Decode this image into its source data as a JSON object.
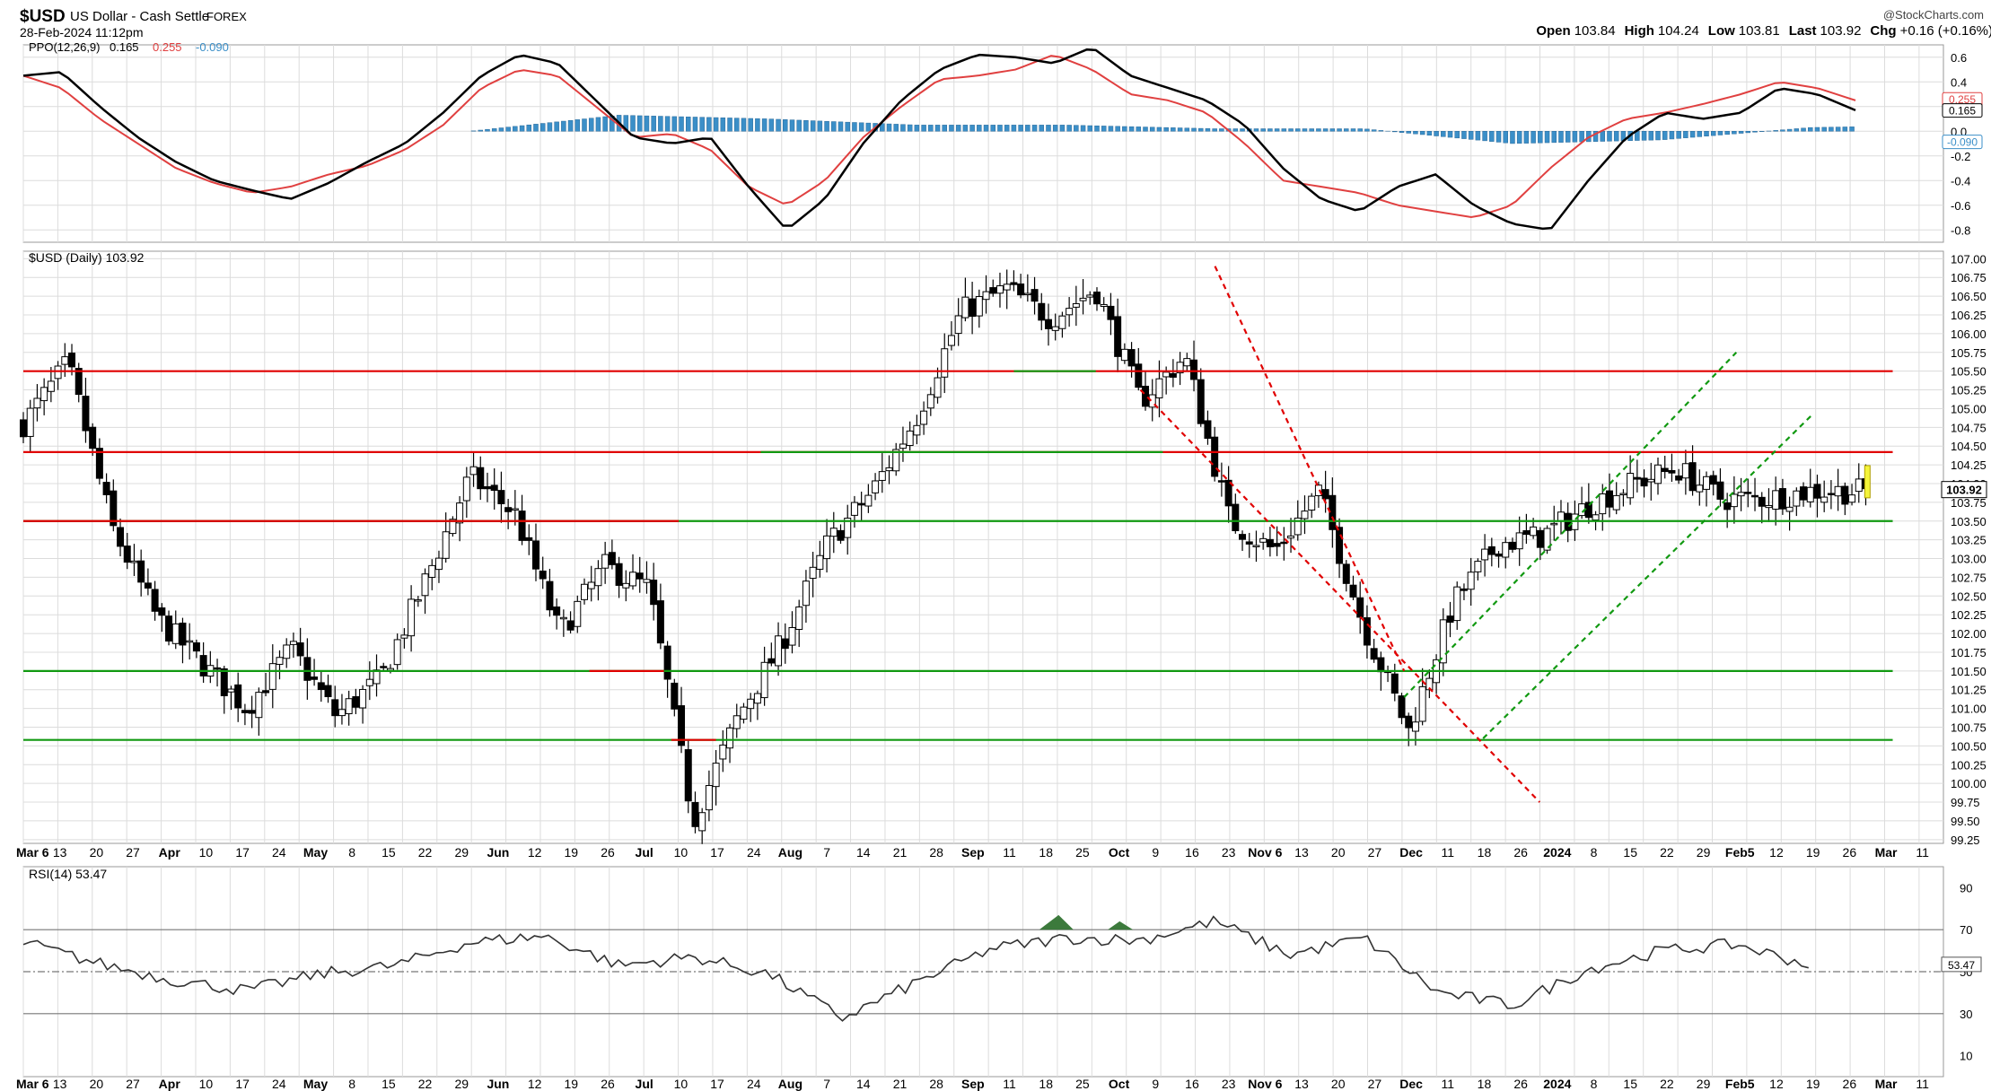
{
  "header": {
    "symbol": "$USD",
    "name": "US Dollar - Cash Settle",
    "exchange": "FOREX",
    "date": "28-Feb-2024 11:12pm",
    "watermark": "@StockCharts.com",
    "ohlc": [
      {
        "label": "Open",
        "value": "103.84"
      },
      {
        "label": "High",
        "value": "104.24"
      },
      {
        "label": "Low",
        "value": "103.81"
      },
      {
        "label": "Last",
        "value": "103.92"
      },
      {
        "label": "Chg",
        "value": "+0.16 (+0.16%)"
      }
    ]
  },
  "colors": {
    "up": "#ffffff",
    "down": "#000000",
    "resistance": "#e00000",
    "support": "#119911",
    "ppo_line": "#000000",
    "signal_line": "#e04040",
    "histogram": "#3b8fc8",
    "rsi_line": "#333333",
    "overbought_fill": "#3c7a3c",
    "last_marker": "#f4f43a"
  },
  "chart_data": [
    {
      "type": "line",
      "panel": "PPO",
      "legend": {
        "name": "PPO(12,26,9)",
        "ppo": "0.165",
        "signal": "0.255",
        "hist": "-0.090"
      },
      "ylim": [
        -0.9,
        0.7
      ],
      "yticks": [
        "0.6",
        "0.4",
        "0.2",
        "0.0",
        "-0.2",
        "-0.4",
        "-0.6",
        "-0.8"
      ],
      "right_badges": [
        "0.255",
        "0.165",
        "-0.090"
      ],
      "x_months": [
        3,
        4,
        5,
        6,
        7,
        8,
        9,
        10,
        11,
        12,
        13
      ],
      "ppo": [
        0.45,
        0.48,
        0.2,
        -0.05,
        -0.25,
        -0.4,
        -0.48,
        -0.55,
        -0.42,
        -0.25,
        -0.1,
        0.15,
        0.45,
        0.62,
        0.55,
        0.25,
        -0.05,
        -0.1,
        -0.05,
        -0.45,
        -0.8,
        -0.55,
        -0.1,
        0.25,
        0.5,
        0.62,
        0.6,
        0.55,
        0.68,
        0.45,
        0.35,
        0.25,
        0.05,
        -0.3,
        -0.55,
        -0.65,
        -0.45,
        -0.35,
        -0.6,
        -0.75,
        -0.8,
        -0.4,
        -0.05,
        0.15,
        0.1,
        0.15,
        0.35,
        0.3,
        0.17
      ],
      "signal": [
        0.45,
        0.35,
        0.1,
        -0.1,
        -0.3,
        -0.42,
        -0.5,
        -0.45,
        -0.35,
        -0.28,
        -0.15,
        0.05,
        0.35,
        0.5,
        0.45,
        0.2,
        -0.05,
        -0.02,
        -0.15,
        -0.45,
        -0.6,
        -0.4,
        -0.05,
        0.2,
        0.42,
        0.45,
        0.5,
        0.62,
        0.5,
        0.3,
        0.25,
        0.15,
        -0.1,
        -0.4,
        -0.45,
        -0.5,
        -0.6,
        -0.65,
        -0.7,
        -0.6,
        -0.3,
        -0.05,
        0.1,
        0.15,
        0.22,
        0.3,
        0.4,
        0.35,
        0.25
      ]
    },
    {
      "type": "candlestick",
      "panel": "Price",
      "title": "$USD (Daily) 103.92",
      "last": "103.92",
      "ylim": [
        99.2,
        107.1
      ],
      "yticks": [
        "107.00",
        "106.75",
        "106.50",
        "106.25",
        "106.00",
        "105.75",
        "105.50",
        "105.25",
        "105.00",
        "104.75",
        "104.50",
        "104.25",
        "104.00",
        "103.75",
        "103.50",
        "103.25",
        "103.00",
        "102.75",
        "102.50",
        "102.25",
        "102.00",
        "101.75",
        "101.50",
        "101.25",
        "101.00",
        "100.75",
        "100.50",
        "100.25",
        "100.00",
        "99.75",
        "99.50",
        "99.25"
      ],
      "xticks": [
        {
          "label": "Mar 6",
          "bold": true
        },
        {
          "label": "13"
        },
        {
          "label": "20"
        },
        {
          "label": "27"
        },
        {
          "label": "Apr",
          "bold": true
        },
        {
          "label": "10"
        },
        {
          "label": "17"
        },
        {
          "label": "24"
        },
        {
          "label": "May",
          "bold": true
        },
        {
          "label": "8"
        },
        {
          "label": "15"
        },
        {
          "label": "22"
        },
        {
          "label": "29"
        },
        {
          "label": "Jun",
          "bold": true
        },
        {
          "label": "12"
        },
        {
          "label": "19"
        },
        {
          "label": "26"
        },
        {
          "label": "Jul",
          "bold": true
        },
        {
          "label": "10"
        },
        {
          "label": "17"
        },
        {
          "label": "24"
        },
        {
          "label": "Aug",
          "bold": true
        },
        {
          "label": "7"
        },
        {
          "label": "14"
        },
        {
          "label": "21"
        },
        {
          "label": "28"
        },
        {
          "label": "Sep",
          "bold": true
        },
        {
          "label": "11"
        },
        {
          "label": "18"
        },
        {
          "label": "25"
        },
        {
          "label": "Oct",
          "bold": true
        },
        {
          "label": "9"
        },
        {
          "label": "16"
        },
        {
          "label": "23"
        },
        {
          "label": "Nov 6",
          "bold": true
        },
        {
          "label": "13"
        },
        {
          "label": "20"
        },
        {
          "label": "27"
        },
        {
          "label": "Dec",
          "bold": true
        },
        {
          "label": "11"
        },
        {
          "label": "18"
        },
        {
          "label": "26"
        },
        {
          "label": "2024",
          "bold": true
        },
        {
          "label": "8"
        },
        {
          "label": "15"
        },
        {
          "label": "22"
        },
        {
          "label": "29"
        },
        {
          "label": "Feb5",
          "bold": true
        },
        {
          "label": "12"
        },
        {
          "label": "19"
        },
        {
          "label": "26"
        },
        {
          "label": "Mar",
          "bold": true
        },
        {
          "label": "11"
        }
      ],
      "path_months": [
        0,
        0.3,
        0.6,
        0.9,
        1.2,
        1.5,
        1.8,
        2.1,
        2.4,
        2.7,
        3.0,
        3.3,
        3.6,
        3.9,
        4.2,
        4.5,
        4.8,
        5.1,
        5.4,
        5.7,
        6.0,
        6.3,
        6.6,
        6.9,
        7.2,
        7.5,
        7.8,
        8.1,
        8.4,
        8.7,
        9.0,
        9.3,
        9.6,
        9.9,
        10.2,
        10.5,
        10.8,
        11.1,
        11.4,
        11.7,
        12.0,
        12.4
      ],
      "path_values": [
        104.8,
        105.6,
        103.4,
        102.2,
        101.6,
        101.0,
        101.8,
        100.9,
        101.4,
        102.7,
        104.1,
        103.6,
        102.0,
        102.9,
        102.6,
        99.5,
        100.9,
        101.9,
        103.2,
        103.9,
        104.9,
        106.3,
        106.6,
        106.2,
        106.6,
        105.1,
        105.7,
        103.5,
        103.1,
        103.9,
        102.1,
        100.7,
        102.4,
        103.2,
        103.3,
        103.7,
        104.0,
        104.2,
        103.8,
        103.8,
        103.9,
        103.9
      ],
      "horizontal_levels": [
        {
          "value": 105.5,
          "color": "resistance",
          "from_month": 0,
          "to_month": 12.55
        },
        {
          "value": 104.42,
          "color": "resistance",
          "from_month": 0,
          "to_month": 12.55
        },
        {
          "value": 104.42,
          "color": "support",
          "from_month": 4.95,
          "to_month": 7.65
        },
        {
          "value": 103.5,
          "color": "support",
          "from_month": 0,
          "to_month": 12.55
        },
        {
          "value": 103.5,
          "color": "resistance",
          "from_month": 0,
          "to_month": 4.4
        },
        {
          "value": 105.5,
          "color": "support",
          "from_month": 6.65,
          "to_month": 7.2
        },
        {
          "value": 101.5,
          "color": "support",
          "from_month": 0,
          "to_month": 12.55
        },
        {
          "value": 101.5,
          "color": "resistance",
          "from_month": 3.8,
          "to_month": 4.3
        },
        {
          "value": 100.58,
          "color": "support",
          "from_month": 0,
          "to_month": 12.55
        },
        {
          "value": 100.58,
          "color": "resistance",
          "from_month": 4.35,
          "to_month": 4.65
        }
      ],
      "trend_channels": [
        {
          "color": "resistance",
          "from": [
            8.0,
            106.9
          ],
          "to": [
            9.27,
            101.5
          ]
        },
        {
          "color": "resistance",
          "from": [
            7.5,
            105.25
          ],
          "to": [
            10.18,
            99.75
          ]
        },
        {
          "color": "support",
          "from": [
            9.27,
            101.15
          ],
          "to": [
            11.5,
            105.75
          ]
        },
        {
          "color": "support",
          "from": [
            9.8,
            100.6
          ],
          "to": [
            12.0,
            104.9
          ]
        }
      ]
    },
    {
      "type": "line",
      "panel": "RSI",
      "legend": "RSI(14) 53.47",
      "last": "53.47",
      "ylim": [
        0,
        100
      ],
      "yticks": [
        "90",
        "70",
        "50",
        "30",
        "10"
      ],
      "reference_levels": [
        70,
        50,
        30
      ],
      "x_months": [
        0,
        0.5,
        1,
        1.5,
        2,
        2.5,
        3,
        3.5,
        4,
        4.5,
        5,
        5.5,
        6,
        6.5,
        7,
        7.5,
        8,
        8.5,
        9,
        9.5,
        10,
        10.5,
        11,
        11.5,
        12
      ],
      "values": [
        64,
        54,
        46,
        41,
        49,
        53,
        64,
        67,
        53,
        57,
        49,
        28,
        45,
        61,
        66,
        65,
        74,
        58,
        66,
        40,
        34,
        51,
        60,
        63,
        53
      ]
    }
  ]
}
